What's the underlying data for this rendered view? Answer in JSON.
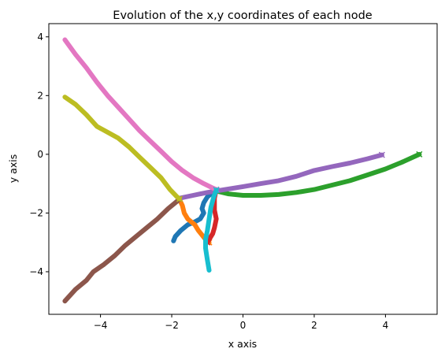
{
  "chart_data": {
    "type": "line",
    "title": "Evolution of the x,y coordinates of each node",
    "xlabel": "x axis",
    "ylabel": "y axis",
    "xlim": [
      -5.45,
      5.45
    ],
    "ylim": [
      -5.45,
      4.45
    ],
    "xticks": [
      -4,
      -2,
      0,
      2,
      4
    ],
    "yticks": [
      -4,
      -2,
      0,
      2,
      4
    ],
    "grid": false,
    "legend": "none",
    "end_marker": "x",
    "series": [
      {
        "color": "#1f77b4",
        "points": [
          [
            -1.95,
            -2.95
          ],
          [
            -1.9,
            -2.8
          ],
          [
            -1.75,
            -2.6
          ],
          [
            -1.55,
            -2.4
          ],
          [
            -1.35,
            -2.3
          ],
          [
            -1.2,
            -2.2
          ],
          [
            -1.1,
            -2.0
          ],
          [
            -1.15,
            -1.85
          ],
          [
            -1.1,
            -1.65
          ],
          [
            -1.0,
            -1.45
          ],
          [
            -0.85,
            -1.3
          ],
          [
            -0.75,
            -1.22
          ]
        ]
      },
      {
        "color": "#ff7f0e",
        "points": [
          [
            -1.78,
            -1.55
          ],
          [
            -1.7,
            -1.75
          ],
          [
            -1.65,
            -2.0
          ],
          [
            -1.55,
            -2.2
          ],
          [
            -1.35,
            -2.4
          ],
          [
            -1.25,
            -2.6
          ],
          [
            -1.15,
            -2.75
          ],
          [
            -1.05,
            -2.9
          ],
          [
            -0.95,
            -3.0
          ]
        ]
      },
      {
        "color": "#2ca02c",
        "points": [
          [
            -0.75,
            -1.25
          ],
          [
            -0.4,
            -1.35
          ],
          [
            0.0,
            -1.4
          ],
          [
            0.5,
            -1.4
          ],
          [
            1.0,
            -1.37
          ],
          [
            1.5,
            -1.3
          ],
          [
            2.0,
            -1.2
          ],
          [
            2.5,
            -1.05
          ],
          [
            3.0,
            -0.9
          ],
          [
            3.5,
            -0.7
          ],
          [
            4.0,
            -0.5
          ],
          [
            4.5,
            -0.25
          ],
          [
            4.95,
            0.0
          ]
        ]
      },
      {
        "color": "#d62728",
        "points": [
          [
            -0.75,
            -1.2
          ],
          [
            -0.8,
            -1.5
          ],
          [
            -0.8,
            -1.9
          ],
          [
            -0.75,
            -2.2
          ],
          [
            -0.8,
            -2.5
          ],
          [
            -0.85,
            -2.7
          ],
          [
            -0.95,
            -2.9
          ],
          [
            -1.0,
            -3.0
          ]
        ]
      },
      {
        "color": "#9467bd",
        "points": [
          [
            -1.8,
            -1.5
          ],
          [
            -1.4,
            -1.4
          ],
          [
            -1.0,
            -1.3
          ],
          [
            -0.5,
            -1.2
          ],
          [
            0.0,
            -1.1
          ],
          [
            0.5,
            -1.0
          ],
          [
            1.0,
            -0.9
          ],
          [
            1.5,
            -0.75
          ],
          [
            2.0,
            -0.55
          ],
          [
            2.5,
            -0.42
          ],
          [
            3.0,
            -0.3
          ],
          [
            3.5,
            -0.15
          ],
          [
            3.9,
            -0.02
          ]
        ]
      },
      {
        "color": "#8c564b",
        "points": [
          [
            -5.0,
            -5.0
          ],
          [
            -4.7,
            -4.6
          ],
          [
            -4.4,
            -4.3
          ],
          [
            -4.2,
            -4.0
          ],
          [
            -3.9,
            -3.75
          ],
          [
            -3.6,
            -3.45
          ],
          [
            -3.3,
            -3.1
          ],
          [
            -3.0,
            -2.8
          ],
          [
            -2.7,
            -2.5
          ],
          [
            -2.4,
            -2.2
          ],
          [
            -2.1,
            -1.85
          ],
          [
            -1.85,
            -1.6
          ],
          [
            -1.78,
            -1.52
          ]
        ]
      },
      {
        "color": "#e377c2",
        "points": [
          [
            -5.0,
            3.9
          ],
          [
            -4.7,
            3.4
          ],
          [
            -4.4,
            2.95
          ],
          [
            -4.1,
            2.45
          ],
          [
            -3.8,
            2.0
          ],
          [
            -3.5,
            1.6
          ],
          [
            -3.2,
            1.2
          ],
          [
            -2.9,
            0.8
          ],
          [
            -2.6,
            0.45
          ],
          [
            -2.3,
            0.1
          ],
          [
            -2.0,
            -0.25
          ],
          [
            -1.7,
            -0.55
          ],
          [
            -1.4,
            -0.8
          ],
          [
            -1.1,
            -1.0
          ],
          [
            -0.85,
            -1.15
          ],
          [
            -0.75,
            -1.2
          ]
        ]
      },
      {
        "color": "#bcbd22",
        "points": [
          [
            -5.0,
            1.95
          ],
          [
            -4.7,
            1.7
          ],
          [
            -4.4,
            1.35
          ],
          [
            -4.1,
            0.95
          ],
          [
            -3.8,
            0.75
          ],
          [
            -3.5,
            0.55
          ],
          [
            -3.2,
            0.25
          ],
          [
            -2.9,
            -0.1
          ],
          [
            -2.6,
            -0.45
          ],
          [
            -2.3,
            -0.8
          ],
          [
            -2.05,
            -1.2
          ],
          [
            -1.85,
            -1.45
          ],
          [
            -1.78,
            -1.52
          ]
        ]
      },
      {
        "color": "#17becf",
        "points": [
          [
            -0.95,
            -3.95
          ],
          [
            -1.0,
            -3.6
          ],
          [
            -1.05,
            -3.2
          ],
          [
            -1.05,
            -2.9
          ],
          [
            -1.0,
            -2.6
          ],
          [
            -0.95,
            -2.2
          ],
          [
            -0.9,
            -1.8
          ],
          [
            -0.82,
            -1.45
          ],
          [
            -0.75,
            -1.22
          ]
        ]
      }
    ]
  }
}
